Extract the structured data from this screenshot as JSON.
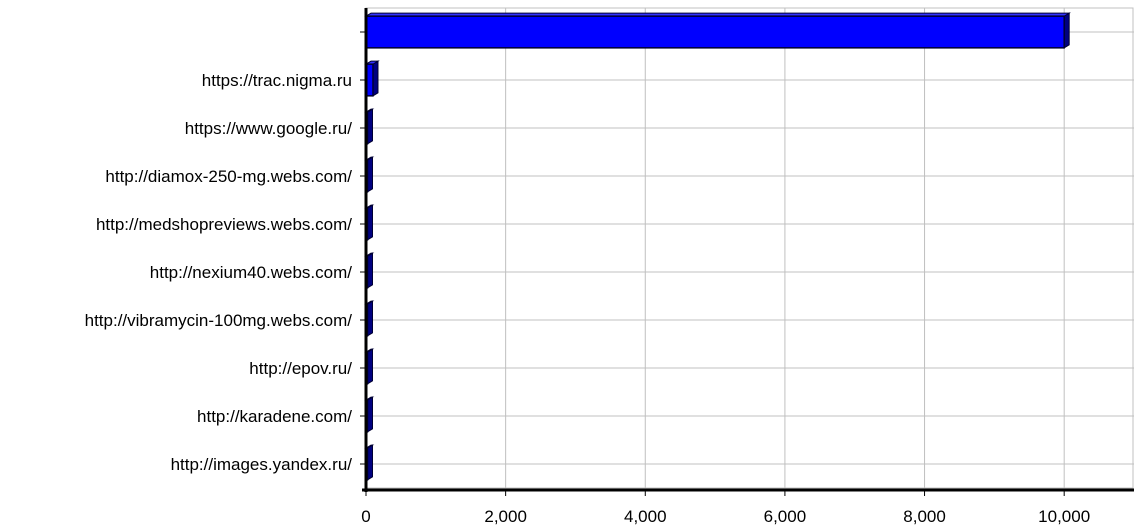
{
  "chart_data": {
    "type": "bar",
    "orientation": "horizontal",
    "title": "",
    "xlabel": "",
    "ylabel": "",
    "categories": [
      "",
      "https://trac.nigma.ru",
      "https://www.google.ru/",
      "http://diamox-250-mg.webs.com/",
      "http://medshopreviews.webs.com/",
      "http://nexium40.webs.com/",
      "http://vibramycin-100mg.webs.com/",
      "http://epov.ru/",
      "http://karadene.com/",
      "http://images.yandex.ru/"
    ],
    "values": [
      10000,
      100,
      1,
      1,
      1,
      1,
      1,
      1,
      1,
      1
    ],
    "xlim": [
      0,
      11000
    ],
    "xticks": [
      0,
      2000,
      4000,
      6000,
      8000,
      10000
    ],
    "xtick_labels": [
      "0",
      "2,000",
      "4,000",
      "6,000",
      "8,000",
      "10,000"
    ],
    "grid": true,
    "legend": "none",
    "colors": {
      "bar": "#0000ff",
      "bar_edge": "#000033",
      "bar_side": "#000080",
      "grid": "#c0c0c0",
      "axis": "#000000"
    }
  }
}
